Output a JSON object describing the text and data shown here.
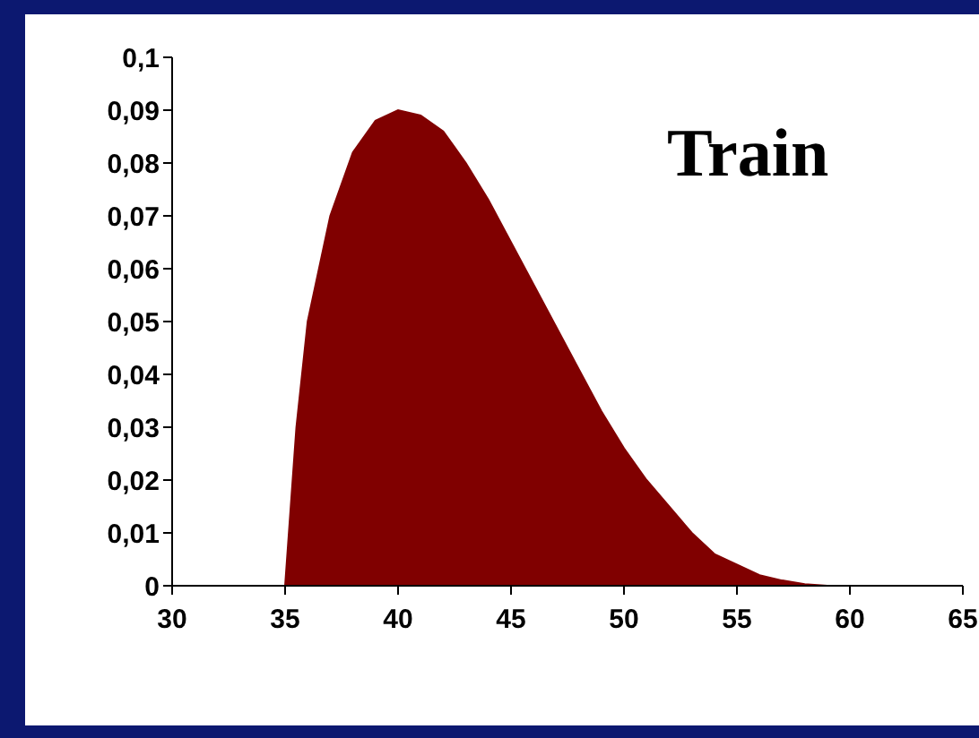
{
  "chart_data": {
    "type": "area",
    "color": "#800000",
    "x": [
      30,
      35,
      35.5,
      36,
      37,
      38,
      39,
      40,
      41,
      42,
      43,
      44,
      45,
      46,
      47,
      48,
      49,
      50,
      51,
      52,
      53,
      54,
      55,
      56,
      57,
      58,
      59,
      65
    ],
    "values": [
      0,
      0,
      0.03,
      0.05,
      0.07,
      0.082,
      0.088,
      0.09,
      0.089,
      0.086,
      0.08,
      0.073,
      0.065,
      0.057,
      0.049,
      0.041,
      0.033,
      0.026,
      0.02,
      0.015,
      0.01,
      0.006,
      0.004,
      0.002,
      0.001,
      0.0003,
      0,
      0
    ],
    "xlim": [
      30,
      65
    ],
    "xticks": [
      30,
      35,
      40,
      45,
      50,
      55,
      60,
      65
    ],
    "ylim": [
      0,
      0.1
    ],
    "yticks": [
      {
        "value": 0,
        "label": "0"
      },
      {
        "value": 0.01,
        "label": "0,01"
      },
      {
        "value": 0.02,
        "label": "0,02"
      },
      {
        "value": 0.03,
        "label": "0,03"
      },
      {
        "value": 0.04,
        "label": "0,04"
      },
      {
        "value": 0.05,
        "label": "0,05"
      },
      {
        "value": 0.06,
        "label": "0,06"
      },
      {
        "value": 0.07,
        "label": "0,07"
      },
      {
        "value": 0.08,
        "label": "0,08"
      },
      {
        "value": 0.09,
        "label": "0,09"
      },
      {
        "value": 0.1,
        "label": "0,1"
      }
    ],
    "annotations": [
      "Train"
    ],
    "grid": false,
    "legend": false
  }
}
